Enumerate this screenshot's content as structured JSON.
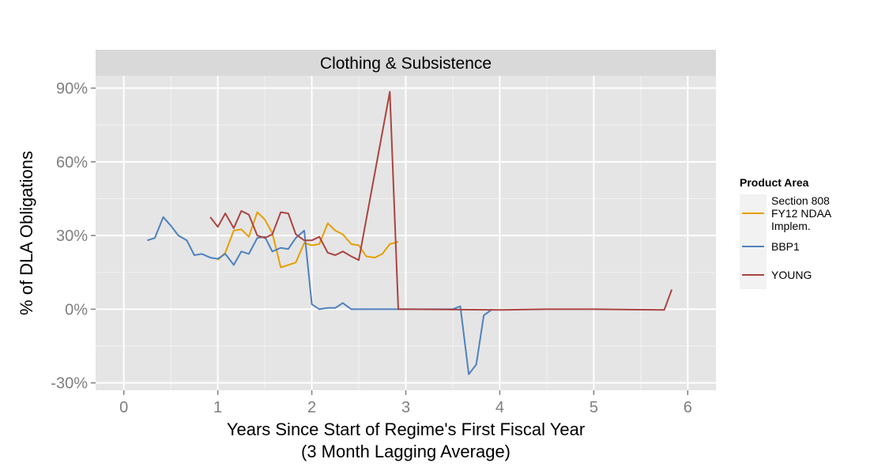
{
  "chart_data": {
    "type": "line",
    "facet_title": "Clothing & Subsistence",
    "xlabel": [
      "Years Since Start of Regime's First Fiscal Year",
      "(3 Month Lagging Average)"
    ],
    "ylabel": "% of DLA Obligations",
    "xlim": [
      -0.3,
      6.3
    ],
    "ylim": [
      -0.33,
      0.95
    ],
    "x_ticks": [
      0,
      1,
      2,
      3,
      4,
      5,
      6
    ],
    "x_tick_labels": [
      "0",
      "1",
      "2",
      "3",
      "4",
      "5",
      "6"
    ],
    "y_ticks": [
      -0.3,
      0,
      0.3,
      0.6,
      0.9
    ],
    "y_tick_labels": [
      "-30%",
      "0%",
      "30%",
      "60%",
      "90%"
    ],
    "grid": true,
    "legend": {
      "title": "Product Area",
      "position": "right",
      "entries": [
        [
          "Section 808",
          "FY12 NDAA",
          "Implem."
        ],
        [
          "BBP1"
        ],
        [
          "YOUNG"
        ]
      ]
    },
    "series": [
      {
        "name": "Section 808 FY12 NDAA Implem.",
        "color": "#E69F00",
        "x": [
          1.0,
          1.08,
          1.17,
          1.25,
          1.33,
          1.42,
          1.5,
          1.58,
          1.67,
          1.75,
          1.83,
          1.92,
          2.0,
          2.08,
          2.17,
          2.25,
          2.33,
          2.42,
          2.5,
          2.58,
          2.67,
          2.75,
          2.83,
          2.92
        ],
        "y": [
          0.2,
          0.23,
          0.32,
          0.325,
          0.295,
          0.395,
          0.365,
          0.31,
          0.17,
          0.18,
          0.19,
          0.27,
          0.26,
          0.265,
          0.35,
          0.32,
          0.305,
          0.265,
          0.26,
          0.215,
          0.21,
          0.225,
          0.265,
          0.275
        ]
      },
      {
        "name": "BBP1",
        "color": "#4F81BD",
        "x": [
          0.25,
          0.33,
          0.42,
          0.5,
          0.58,
          0.67,
          0.75,
          0.83,
          0.92,
          1.0,
          1.08,
          1.17,
          1.25,
          1.33,
          1.42,
          1.5,
          1.58,
          1.67,
          1.75,
          1.83,
          1.92,
          2.0,
          2.08,
          2.17,
          2.25,
          2.33,
          2.42,
          2.5,
          2.58,
          2.67,
          2.75,
          2.83,
          2.92,
          3.0,
          3.25,
          3.5,
          3.58,
          3.67,
          3.75,
          3.83,
          3.92
        ],
        "y": [
          0.28,
          0.29,
          0.375,
          0.34,
          0.3,
          0.28,
          0.22,
          0.225,
          0.21,
          0.205,
          0.225,
          0.18,
          0.235,
          0.225,
          0.29,
          0.295,
          0.235,
          0.25,
          0.245,
          0.29,
          0.32,
          0.02,
          0.0,
          0.005,
          0.005,
          0.025,
          0.0,
          0.0,
          0.0,
          0.0,
          0.0,
          0.0,
          0.0,
          0.0,
          0.0,
          0.0,
          0.012,
          -0.265,
          -0.225,
          -0.025,
          0.0
        ]
      },
      {
        "name": "YOUNG",
        "color": "#A94442",
        "x": [
          0.92,
          1.0,
          1.08,
          1.17,
          1.25,
          1.33,
          1.42,
          1.5,
          1.58,
          1.67,
          1.75,
          1.83,
          1.92,
          2.0,
          2.08,
          2.17,
          2.25,
          2.33,
          2.42,
          2.5,
          2.83,
          2.92,
          3.0,
          4.0,
          4.5,
          5.0,
          5.5,
          5.75,
          5.83
        ],
        "y": [
          0.375,
          0.335,
          0.39,
          0.33,
          0.4,
          0.385,
          0.3,
          0.29,
          0.305,
          0.395,
          0.39,
          0.305,
          0.28,
          0.28,
          0.295,
          0.23,
          0.22,
          0.235,
          0.215,
          0.2,
          0.885,
          0.0,
          0.0,
          -0.003,
          0.0,
          0.0,
          -0.002,
          -0.003,
          0.08
        ]
      }
    ]
  }
}
